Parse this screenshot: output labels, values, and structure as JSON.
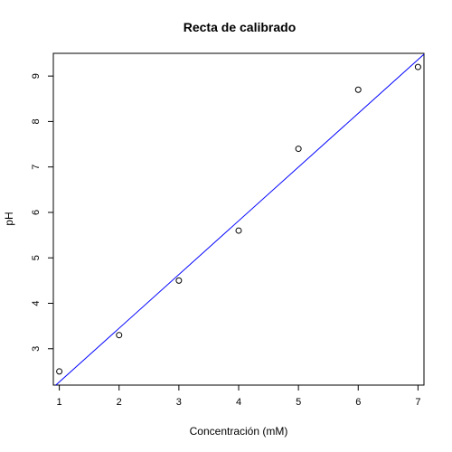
{
  "chart_data": {
    "type": "scatter",
    "title": "Recta de calibrado",
    "xlabel": "Concentración (mM)",
    "ylabel": "pH",
    "xlim": [
      0.9,
      7.1
    ],
    "ylim": [
      2.2,
      9.5
    ],
    "x_ticks": [
      1,
      2,
      3,
      4,
      5,
      6,
      7
    ],
    "y_ticks": [
      3,
      4,
      5,
      6,
      7,
      8,
      9
    ],
    "grid": false,
    "points": {
      "x": [
        1,
        2,
        3,
        4,
        5,
        6,
        7
      ],
      "y": [
        2.5,
        3.3,
        4.5,
        5.6,
        7.4,
        8.7,
        9.2
      ]
    },
    "fit_line": {
      "type": "linear",
      "intercept": 1.087,
      "slope": 1.182,
      "color": "#0000ff"
    },
    "point_color": "#000000"
  }
}
